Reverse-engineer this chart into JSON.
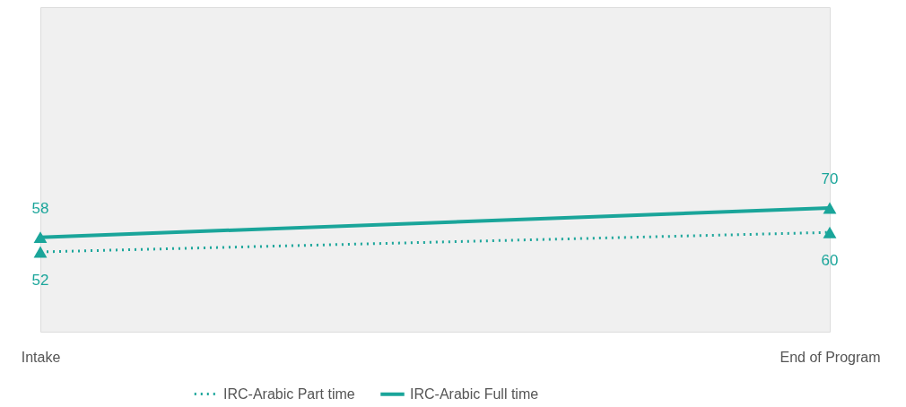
{
  "chart_data": {
    "type": "line",
    "categories": [
      "Intake",
      "End of Program"
    ],
    "series": [
      {
        "name": "IRC-Arabic Part time",
        "color": "#1aa59a",
        "values": [
          52,
          60
        ],
        "line_style": "dotted"
      },
      {
        "name": "IRC-Arabic Full time",
        "color": "#1aa59a",
        "values": [
          58,
          70
        ],
        "line_style": "solid"
      }
    ],
    "marker": "triangle",
    "data_labels": true,
    "legend": "bottom"
  }
}
